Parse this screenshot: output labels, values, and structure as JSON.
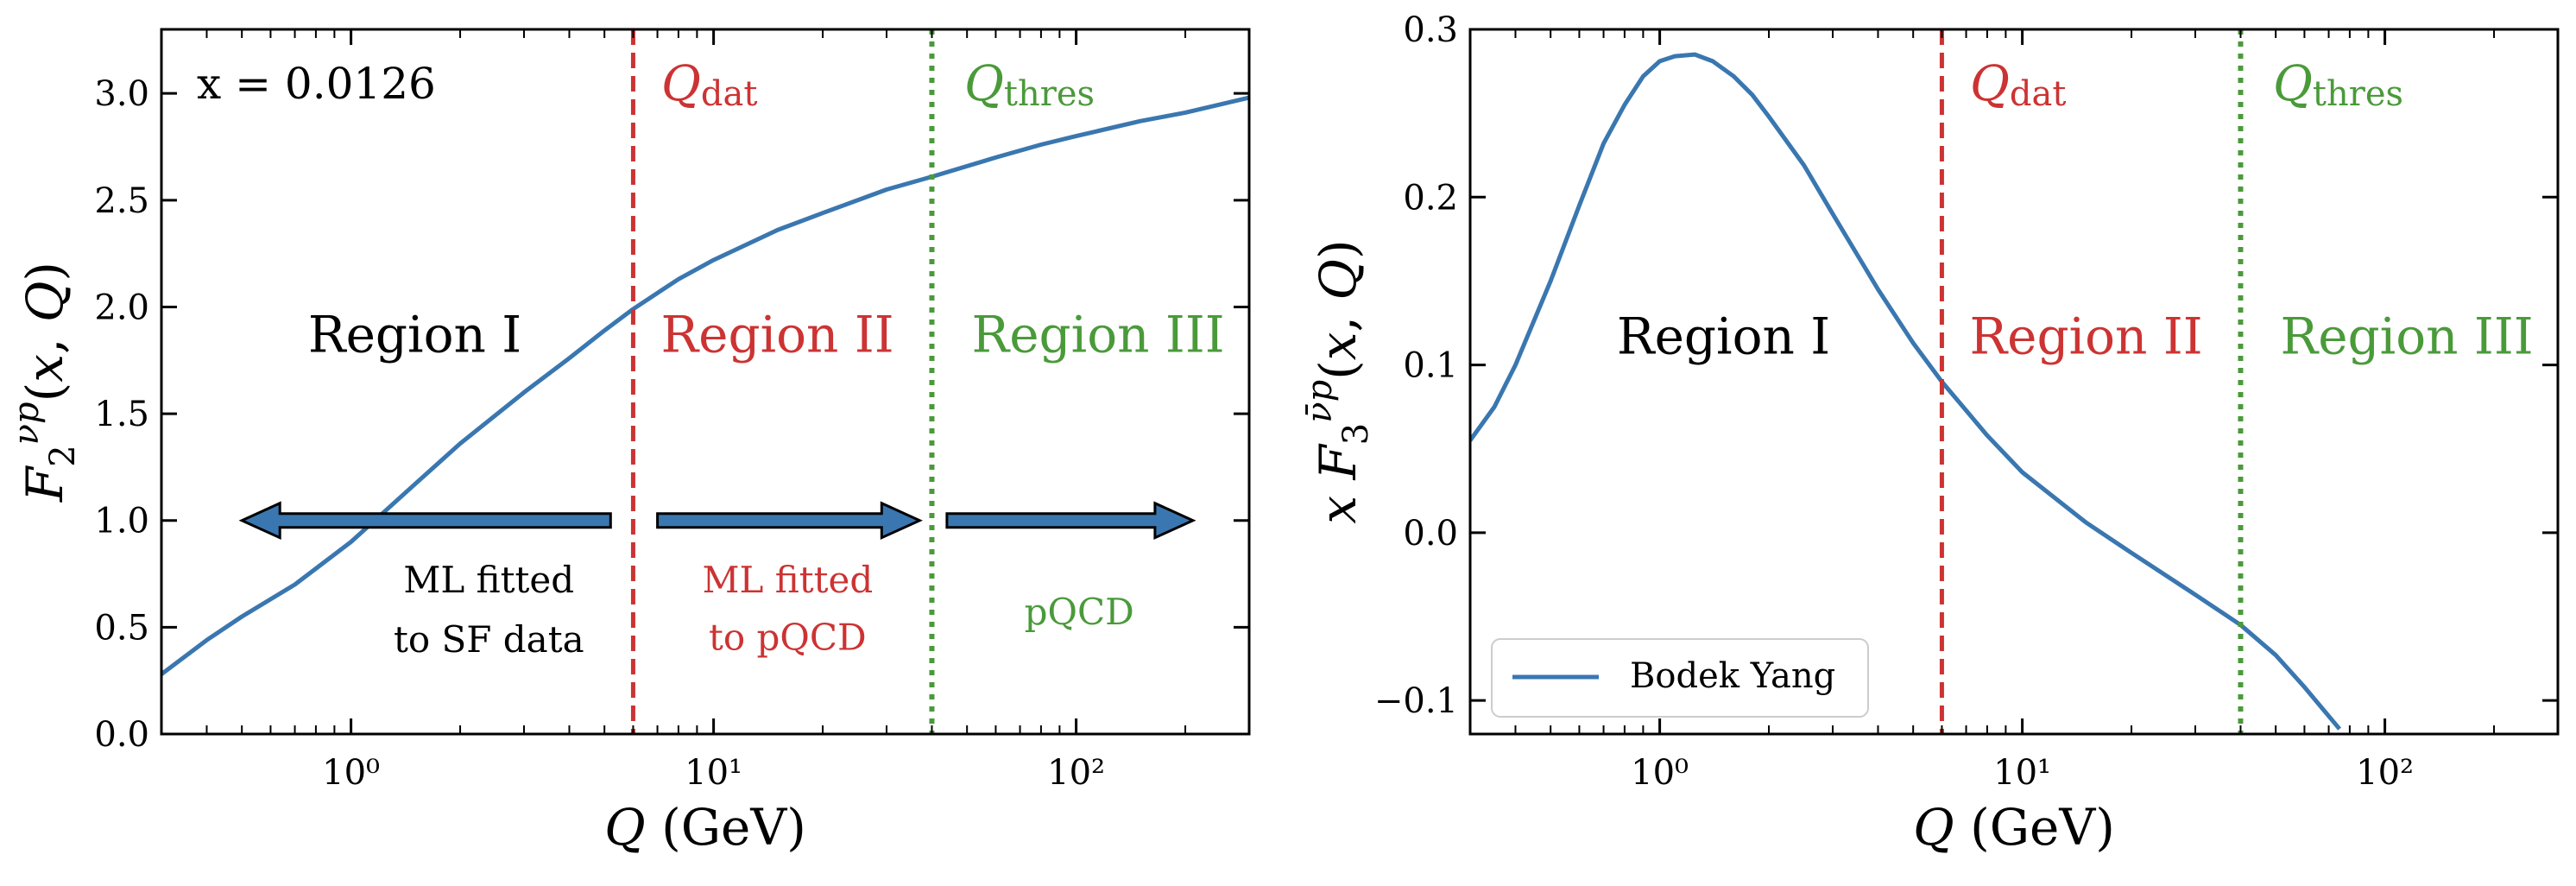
{
  "colors": {
    "curve": "#3a77b0",
    "qdat": "#cc3333",
    "qthres": "#4a9a3a",
    "region1": "#000000",
    "arrow_fill": "#3a77b0",
    "arrow_edge": "#000000"
  },
  "chart_data": [
    {
      "type": "line",
      "x_scale": "log",
      "xlim": [
        0.3,
        300
      ],
      "ylim": [
        0.0,
        3.3
      ],
      "xlabel": "Q (GeV)",
      "ylabel": "F_2^{νp}(x, Q)",
      "x_ticks": [
        1,
        10,
        100
      ],
      "x_tick_labels": [
        "10⁰",
        "10¹",
        "10²"
      ],
      "y_ticks": [
        0.0,
        0.5,
        1.0,
        1.5,
        2.0,
        2.5,
        3.0
      ],
      "y_tick_labels": [
        "0.0",
        "0.5",
        "1.0",
        "1.5",
        "2.0",
        "2.5",
        "3.0"
      ],
      "x_annotation": "x = 0.0126",
      "qdat": {
        "x": 6,
        "label": "Q",
        "sub": "dat"
      },
      "qthres": {
        "x": 40,
        "label": "Q",
        "sub": "thres"
      },
      "regions": [
        {
          "label": "Region I",
          "x": 1.5,
          "y": 1.87,
          "color": "region1"
        },
        {
          "label": "Region II",
          "x": 15,
          "y": 1.87,
          "color": "qdat"
        },
        {
          "label": "Region III",
          "x": 115,
          "y": 1.87,
          "color": "qthres"
        }
      ],
      "arrows": [
        {
          "from": 5.2,
          "to": 0.5,
          "y": 1.0
        },
        {
          "from": 7.0,
          "to": 37,
          "y": 1.0
        },
        {
          "from": 44,
          "to": 210,
          "y": 1.0
        }
      ],
      "notes": [
        {
          "lines": [
            "ML fitted",
            "to SF data"
          ],
          "x": 2.4,
          "y": [
            0.72,
            0.44
          ],
          "color": "region1"
        },
        {
          "lines": [
            "ML fitted",
            "to pQCD"
          ],
          "x": 16,
          "y": [
            0.72,
            0.45
          ],
          "color": "qdat"
        },
        {
          "lines": [
            "pQCD"
          ],
          "x": 102,
          "y": [
            0.57
          ],
          "color": "qthres"
        }
      ],
      "series": [
        {
          "x": [
            0.3,
            0.4,
            0.5,
            0.7,
            1.0,
            1.5,
            2.0,
            3.0,
            4.0,
            5.0,
            6.0,
            8.0,
            10,
            15,
            20,
            30,
            40,
            60,
            80,
            100,
            150,
            200,
            300
          ],
          "y": [
            0.28,
            0.44,
            0.55,
            0.7,
            0.9,
            1.17,
            1.36,
            1.6,
            1.76,
            1.89,
            1.99,
            2.13,
            2.22,
            2.36,
            2.44,
            2.55,
            2.61,
            2.7,
            2.76,
            2.8,
            2.87,
            2.91,
            2.98
          ]
        }
      ]
    },
    {
      "type": "line",
      "x_scale": "log",
      "xlim": [
        0.3,
        300
      ],
      "ylim": [
        -0.12,
        0.3
      ],
      "xlabel": "Q (GeV)",
      "ylabel": "x F_3^{ν̄p}(x, Q)",
      "x_ticks": [
        1,
        10,
        100
      ],
      "x_tick_labels": [
        "10⁰",
        "10¹",
        "10²"
      ],
      "y_ticks": [
        -0.1,
        0.0,
        0.1,
        0.2,
        0.3
      ],
      "y_tick_labels": [
        "−0.1",
        "0.0",
        "0.1",
        "0.2",
        "0.3"
      ],
      "qdat": {
        "x": 6,
        "label": "Q",
        "sub": "dat"
      },
      "qthres": {
        "x": 40,
        "label": "Q",
        "sub": "thres"
      },
      "regions": [
        {
          "label": "Region I",
          "x": 1.5,
          "y": 0.117,
          "color": "region1"
        },
        {
          "label": "Region II",
          "x": 15,
          "y": 0.117,
          "color": "qdat"
        },
        {
          "label": "Region III",
          "x": 115,
          "y": 0.117,
          "color": "qthres"
        }
      ],
      "legend": {
        "position": "lower-left",
        "entries": [
          "Bodek Yang"
        ]
      },
      "series": [
        {
          "name": "Bodek Yang",
          "x": [
            0.3,
            0.35,
            0.4,
            0.5,
            0.6,
            0.7,
            0.8,
            0.9,
            1.0,
            1.1,
            1.25,
            1.4,
            1.6,
            1.8,
            2.0,
            2.5,
            3.0,
            4.0,
            5.0,
            6.0,
            8.0,
            10,
            15,
            20,
            30,
            40,
            50,
            60,
            75
          ],
          "y": [
            0.055,
            0.075,
            0.1,
            0.15,
            0.195,
            0.232,
            0.255,
            0.272,
            0.281,
            0.284,
            0.285,
            0.281,
            0.272,
            0.261,
            0.248,
            0.219,
            0.19,
            0.145,
            0.113,
            0.09,
            0.058,
            0.036,
            0.006,
            -0.012,
            -0.037,
            -0.055,
            -0.073,
            -0.092,
            -0.117
          ]
        }
      ]
    }
  ]
}
